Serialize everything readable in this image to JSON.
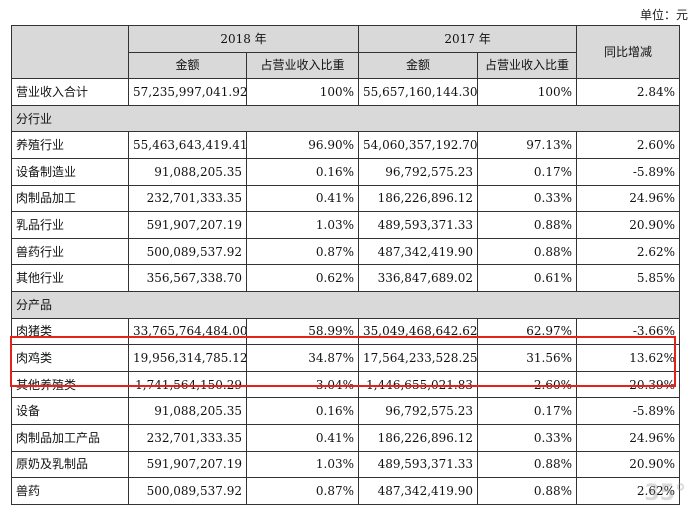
{
  "unit_label": "单位：元",
  "headers": {
    "col_2018": "2018 年",
    "col_2017": "2017 年",
    "col_yoy": "同比增减",
    "amount": "金额",
    "ratio": "占营业收入比重"
  },
  "total_row": {
    "label": "营业收入合计",
    "amt2018": "57,235,997,041.92",
    "pct2018": "100%",
    "amt2017": "55,657,160,144.30",
    "pct2017": "100%",
    "yoy": "2.84%"
  },
  "section_industry": "分行业",
  "industry_rows": [
    {
      "label": "养殖行业",
      "amt2018": "55,463,643,419.41",
      "pct2018": "96.90%",
      "amt2017": "54,060,357,192.70",
      "pct2017": "97.13%",
      "yoy": "2.60%"
    },
    {
      "label": "设备制造业",
      "amt2018": "91,088,205.35",
      "pct2018": "0.16%",
      "amt2017": "96,792,575.23",
      "pct2017": "0.17%",
      "yoy": "-5.89%"
    },
    {
      "label": "肉制品加工",
      "amt2018": "232,701,333.35",
      "pct2018": "0.41%",
      "amt2017": "186,226,896.12",
      "pct2017": "0.33%",
      "yoy": "24.96%"
    },
    {
      "label": "乳品行业",
      "amt2018": "591,907,207.19",
      "pct2018": "1.03%",
      "amt2017": "489,593,371.33",
      "pct2017": "0.88%",
      "yoy": "20.90%"
    },
    {
      "label": "兽药行业",
      "amt2018": "500,089,537.92",
      "pct2018": "0.87%",
      "amt2017": "487,342,419.90",
      "pct2017": "0.88%",
      "yoy": "2.62%"
    },
    {
      "label": "其他行业",
      "amt2018": "356,567,338.70",
      "pct2018": "0.62%",
      "amt2017": "336,847,689.02",
      "pct2017": "0.61%",
      "yoy": "5.85%"
    }
  ],
  "section_product": "分产品",
  "product_rows": [
    {
      "label": "肉猪类",
      "amt2018": "33,765,764,484.00",
      "pct2018": "58.99%",
      "amt2017": "35,049,468,642.62",
      "pct2017": "62.97%",
      "yoy": "-3.66%"
    },
    {
      "label": "肉鸡类",
      "amt2018": "19,956,314,785.12",
      "pct2018": "34.87%",
      "amt2017": "17,564,233,528.25",
      "pct2017": "31.56%",
      "yoy": "13.62%"
    },
    {
      "label": "其他养殖类",
      "amt2018": "1,741,564,150.29",
      "pct2018": "3.04%",
      "amt2017": "1,446,655,021.83",
      "pct2017": "2.60%",
      "yoy": "20.39%"
    },
    {
      "label": "设备",
      "amt2018": "91,088,205.35",
      "pct2018": "0.16%",
      "amt2017": "96,792,575.23",
      "pct2017": "0.17%",
      "yoy": "-5.89%"
    },
    {
      "label": "肉制品加工产品",
      "amt2018": "232,701,333.35",
      "pct2018": "0.41%",
      "amt2017": "186,226,896.12",
      "pct2017": "0.33%",
      "yoy": "24.96%"
    },
    {
      "label": "原奶及乳制品",
      "amt2018": "591,907,207.19",
      "pct2018": "1.03%",
      "amt2017": "489,593,371.33",
      "pct2017": "0.88%",
      "yoy": "20.90%"
    },
    {
      "label": "兽药",
      "amt2018": "500,089,537.92",
      "pct2018": "0.87%",
      "amt2017": "487,342,419.90",
      "pct2017": "0.88%",
      "yoy": "2.62%"
    }
  ],
  "highlight_color": "#e2231a"
}
